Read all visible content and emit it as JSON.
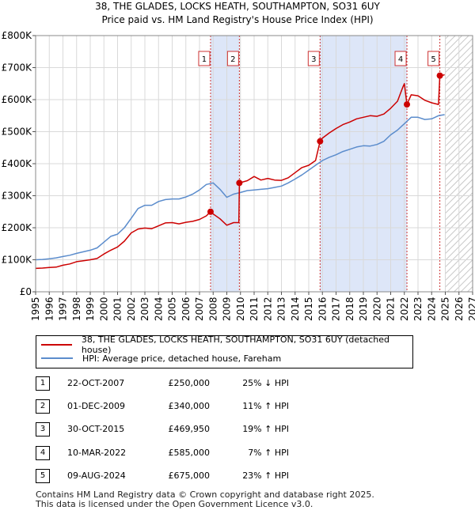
{
  "title_line1": "38, THE GLADES, LOCKS HEATH, SOUTHAMPTON, SO31 6UY",
  "title_line2": "Price paid vs. HM Land Registry's House Price Index (HPI)",
  "legend": {
    "series1": "38, THE GLADES, LOCKS HEATH, SOUTHAMPTON, SO31 6UY (detached house)",
    "series2": "HPI: Average price, detached house, Fareham"
  },
  "sales": [
    {
      "num": "1",
      "date": "22-OCT-2007",
      "price": "£250,000",
      "hpi": "25% ↓ HPI"
    },
    {
      "num": "2",
      "date": "01-DEC-2009",
      "price": "£340,000",
      "hpi": "11% ↑ HPI"
    },
    {
      "num": "3",
      "date": "30-OCT-2015",
      "price": "£469,950",
      "hpi": "19% ↑ HPI"
    },
    {
      "num": "4",
      "date": "10-MAR-2022",
      "price": "£585,000",
      "hpi": "7% ↑ HPI"
    },
    {
      "num": "5",
      "date": "09-AUG-2024",
      "price": "£675,000",
      "hpi": "23% ↑ HPI"
    }
  ],
  "footer_line1": "Contains HM Land Registry data © Crown copyright and database right 2025.",
  "footer_line2": "This data is licensed under the Open Government Licence v3.0.",
  "colors": {
    "property": "#cc0000",
    "hpi": "#5b8ccc",
    "band": "#dde6f8",
    "marker": "#cc0000"
  },
  "chart_data": {
    "type": "line",
    "title": "38, THE GLADES, LOCKS HEATH, SOUTHAMPTON, SO31 6UY — Price paid vs. HM Land Registry's House Price Index (HPI)",
    "xlabel": "",
    "ylabel": "",
    "xlim": [
      1995,
      2027
    ],
    "ylim": [
      0,
      800000
    ],
    "x_ticks": [
      1995,
      1996,
      1997,
      1998,
      1999,
      2000,
      2001,
      2002,
      2003,
      2004,
      2005,
      2006,
      2007,
      2008,
      2009,
      2010,
      2011,
      2012,
      2013,
      2014,
      2015,
      2016,
      2017,
      2018,
      2019,
      2020,
      2021,
      2022,
      2023,
      2024,
      2025,
      2026,
      2027
    ],
    "y_ticks": [
      0,
      100000,
      200000,
      300000,
      400000,
      500000,
      600000,
      700000,
      800000
    ],
    "y_tick_labels": [
      "£0",
      "£100K",
      "£200K",
      "£300K",
      "£400K",
      "£500K",
      "£600K",
      "£700K",
      "£800K"
    ],
    "grid": true,
    "shaded_ranges": [
      [
        2007.81,
        2009.92
      ],
      [
        2015.83,
        2022.19
      ]
    ],
    "hatched_after": 2025.0,
    "series": [
      {
        "name": "38, THE GLADES, LOCKS HEATH, SOUTHAMPTON, SO31 6UY (detached house)",
        "x": [
          1995.0,
          1995.5,
          1996.0,
          1996.5,
          1997.0,
          1997.5,
          1998.0,
          1998.5,
          1999.0,
          1999.5,
          2000.0,
          2000.5,
          2001.0,
          2001.5,
          2002.0,
          2002.5,
          2003.0,
          2003.5,
          2004.0,
          2004.5,
          2005.0,
          2005.5,
          2006.0,
          2006.5,
          2007.0,
          2007.5,
          2007.81,
          2008.0,
          2008.5,
          2009.0,
          2009.5,
          2009.88,
          2009.92,
          2010.5,
          2011.0,
          2011.5,
          2012.0,
          2012.5,
          2013.0,
          2013.5,
          2014.0,
          2014.5,
          2015.0,
          2015.5,
          2015.83,
          2016.0,
          2016.5,
          2017.0,
          2017.5,
          2018.0,
          2018.5,
          2019.0,
          2019.5,
          2020.0,
          2020.5,
          2021.0,
          2021.5,
          2021.9,
          2022.0,
          2022.19,
          2022.5,
          2023.0,
          2023.5,
          2024.0,
          2024.5,
          2024.6,
          2024.75,
          2024.95
        ],
        "y": [
          73000,
          74000,
          76000,
          77000,
          83000,
          87000,
          94000,
          97000,
          100000,
          104000,
          118000,
          130000,
          140000,
          158000,
          184000,
          196000,
          199000,
          197000,
          206000,
          215000,
          216000,
          212000,
          217000,
          220000,
          226000,
          237000,
          250000,
          243000,
          228000,
          208000,
          216000,
          216000,
          340000,
          347000,
          360000,
          349000,
          354000,
          349000,
          348000,
          356000,
          372000,
          388000,
          395000,
          410000,
          469950,
          480000,
          496000,
          510000,
          522000,
          530000,
          540000,
          545000,
          550000,
          548000,
          555000,
          573000,
          595000,
          640000,
          650000,
          585000,
          615000,
          612000,
          598000,
          590000,
          585000,
          675000,
          675000,
          678000
        ]
      },
      {
        "name": "HPI: Average price, detached house, Fareham",
        "x": [
          1995.0,
          1995.5,
          1996.0,
          1996.5,
          1997.0,
          1997.5,
          1998.0,
          1998.5,
          1999.0,
          1999.5,
          2000.0,
          2000.5,
          2001.0,
          2001.5,
          2002.0,
          2002.5,
          2003.0,
          2003.5,
          2004.0,
          2004.5,
          2005.0,
          2005.5,
          2006.0,
          2006.5,
          2007.0,
          2007.5,
          2008.0,
          2008.5,
          2009.0,
          2009.5,
          2010.0,
          2010.5,
          2011.0,
          2011.5,
          2012.0,
          2012.5,
          2013.0,
          2013.5,
          2014.0,
          2014.5,
          2015.0,
          2015.5,
          2016.0,
          2016.5,
          2017.0,
          2017.5,
          2018.0,
          2018.5,
          2019.0,
          2019.5,
          2020.0,
          2020.5,
          2021.0,
          2021.5,
          2022.0,
          2022.5,
          2023.0,
          2023.5,
          2024.0,
          2024.5,
          2024.95
        ],
        "y": [
          100000,
          101000,
          103000,
          106000,
          110000,
          114000,
          120000,
          125000,
          130000,
          137000,
          155000,
          173000,
          180000,
          200000,
          230000,
          260000,
          270000,
          270000,
          282000,
          288000,
          290000,
          290000,
          296000,
          305000,
          318000,
          335000,
          340000,
          320000,
          295000,
          305000,
          310000,
          316000,
          318000,
          320000,
          322000,
          326000,
          330000,
          340000,
          352000,
          365000,
          380000,
          395000,
          410000,
          420000,
          428000,
          438000,
          445000,
          452000,
          456000,
          455000,
          460000,
          470000,
          490000,
          505000,
          525000,
          545000,
          545000,
          538000,
          540000,
          550000,
          553000
        ]
      }
    ],
    "sale_markers": [
      {
        "label": "1",
        "x": 2007.81,
        "y": 250000
      },
      {
        "label": "2",
        "x": 2009.92,
        "y": 340000
      },
      {
        "label": "3",
        "x": 2015.83,
        "y": 469950
      },
      {
        "label": "4",
        "x": 2022.19,
        "y": 585000
      },
      {
        "label": "5",
        "x": 2024.6,
        "y": 675000
      }
    ]
  }
}
